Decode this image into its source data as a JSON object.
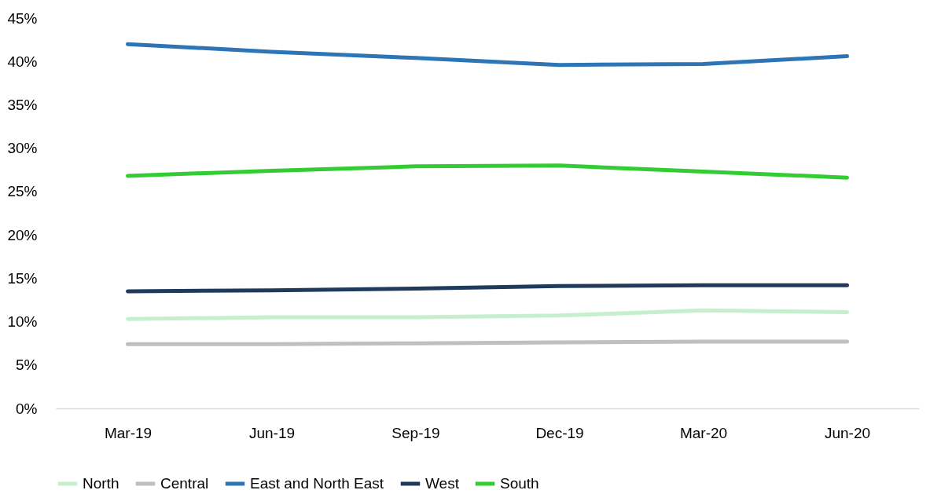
{
  "chart_data": {
    "type": "line",
    "categories": [
      "Mar-19",
      "Jun-19",
      "Sep-19",
      "Dec-19",
      "Mar-20",
      "Jun-20"
    ],
    "series": [
      {
        "name": "North",
        "color": "#c6efce",
        "values": [
          10.3,
          10.5,
          10.5,
          10.7,
          11.3,
          11.1
        ]
      },
      {
        "name": "Central",
        "color": "#bfbfbf",
        "values": [
          7.4,
          7.4,
          7.5,
          7.6,
          7.7,
          7.7
        ]
      },
      {
        "name": "East and North East",
        "color": "#2e75b6",
        "values": [
          42.0,
          41.1,
          40.4,
          39.6,
          39.7,
          40.6
        ]
      },
      {
        "name": "West",
        "color": "#1f3a5a",
        "values": [
          13.5,
          13.6,
          13.8,
          14.1,
          14.2,
          14.2
        ]
      },
      {
        "name": "South",
        "color": "#33cc33",
        "values": [
          26.8,
          27.4,
          27.9,
          28.0,
          27.3,
          26.6
        ]
      }
    ],
    "ylim": [
      0,
      45
    ],
    "yticks": [
      {
        "value": 0,
        "label": "0%"
      },
      {
        "value": 5,
        "label": "5%"
      },
      {
        "value": 10,
        "label": "10%"
      },
      {
        "value": 15,
        "label": "15%"
      },
      {
        "value": 20,
        "label": "20%"
      },
      {
        "value": 25,
        "label": "25%"
      },
      {
        "value": 30,
        "label": "30%"
      },
      {
        "value": 35,
        "label": "35%"
      },
      {
        "value": 40,
        "label": "40%"
      },
      {
        "value": 45,
        "label": "45%"
      }
    ],
    "grid": false,
    "legend": "bottom",
    "marker": "none",
    "line_style": "solid"
  }
}
